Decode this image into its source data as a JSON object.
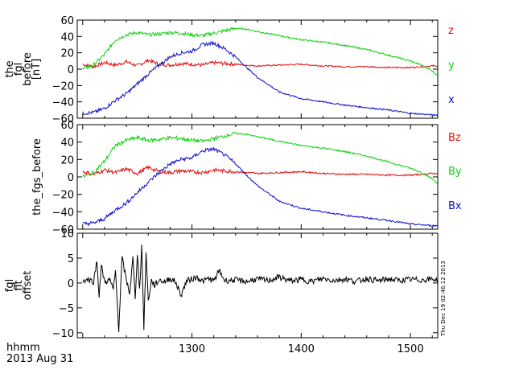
{
  "chart_data": [
    {
      "type": "line",
      "ylabel_lines": [
        "the",
        "fgl",
        "before",
        "[nT]"
      ],
      "ylim": [
        -60,
        60
      ],
      "yticks": [
        -60,
        -40,
        -20,
        0,
        20,
        40,
        60
      ],
      "yticklabels": [
        "−60",
        "−40",
        "−20",
        "0",
        "20",
        "40",
        "60"
      ],
      "xlim": [
        1195,
        1525
      ],
      "series": [
        {
          "name": "z",
          "color": "#e01010",
          "x": [
            1200,
            1210,
            1220,
            1230,
            1240,
            1250,
            1260,
            1270,
            1280,
            1290,
            1300,
            1310,
            1320,
            1330,
            1340,
            1350,
            1360,
            1380,
            1400,
            1420,
            1440,
            1460,
            1480,
            1500,
            1510,
            1520,
            1525
          ],
          "y": [
            6,
            3,
            8,
            5,
            9,
            4,
            11,
            6,
            5,
            7,
            6,
            5,
            8,
            7,
            6,
            5,
            4,
            5,
            6,
            4,
            3,
            3,
            2,
            2,
            3,
            4,
            4
          ]
        },
        {
          "name": "y",
          "color": "#10d010",
          "x": [
            1200,
            1210,
            1220,
            1230,
            1240,
            1250,
            1260,
            1270,
            1280,
            1290,
            1300,
            1310,
            1320,
            1330,
            1340,
            1350,
            1360,
            1380,
            1400,
            1420,
            1440,
            1460,
            1480,
            1500,
            1510,
            1520,
            1525
          ],
          "y": [
            0,
            5,
            18,
            36,
            42,
            45,
            42,
            43,
            45,
            44,
            42,
            41,
            44,
            47,
            50,
            49,
            46,
            41,
            36,
            33,
            29,
            24,
            17,
            10,
            5,
            -2,
            -8
          ]
        },
        {
          "name": "x",
          "color": "#1010d0",
          "x": [
            1200,
            1210,
            1220,
            1230,
            1240,
            1250,
            1260,
            1270,
            1280,
            1290,
            1300,
            1310,
            1320,
            1330,
            1340,
            1350,
            1360,
            1380,
            1400,
            1420,
            1440,
            1460,
            1480,
            1500,
            1510,
            1520,
            1525
          ],
          "y": [
            -54,
            -53,
            -48,
            -38,
            -30,
            -18,
            -6,
            5,
            15,
            20,
            22,
            30,
            32,
            25,
            15,
            2,
            -10,
            -28,
            -36,
            -40,
            -44,
            -47,
            -50,
            -54,
            -55,
            -56,
            -56
          ]
        }
      ]
    },
    {
      "type": "line",
      "ylabel_lines": [
        "the_fgs_before"
      ],
      "ylim": [
        -60,
        60
      ],
      "yticks": [
        -60,
        -40,
        -20,
        0,
        20,
        40,
        60
      ],
      "yticklabels": [
        "−60",
        "−40",
        "−20",
        "0",
        "20",
        "40",
        "60"
      ],
      "xlim": [
        1195,
        1525
      ],
      "series": [
        {
          "name": "Bz",
          "color": "#e01010",
          "x": [
            1200,
            1210,
            1220,
            1230,
            1240,
            1250,
            1260,
            1270,
            1280,
            1290,
            1300,
            1310,
            1320,
            1330,
            1340,
            1350,
            1360,
            1380,
            1400,
            1420,
            1440,
            1460,
            1480,
            1500,
            1510,
            1520,
            1525
          ],
          "y": [
            6,
            3,
            8,
            5,
            9,
            4,
            11,
            6,
            5,
            7,
            6,
            5,
            8,
            7,
            6,
            5,
            4,
            5,
            6,
            4,
            3,
            3,
            2,
            2,
            3,
            4,
            4
          ]
        },
        {
          "name": "By",
          "color": "#10d010",
          "x": [
            1200,
            1210,
            1220,
            1230,
            1240,
            1250,
            1260,
            1270,
            1280,
            1290,
            1300,
            1310,
            1320,
            1330,
            1340,
            1350,
            1360,
            1380,
            1400,
            1420,
            1440,
            1460,
            1480,
            1500,
            1510,
            1520,
            1525
          ],
          "y": [
            0,
            5,
            18,
            36,
            42,
            45,
            42,
            43,
            45,
            44,
            42,
            41,
            44,
            47,
            50,
            49,
            46,
            41,
            36,
            33,
            29,
            24,
            17,
            10,
            5,
            -2,
            -8
          ]
        },
        {
          "name": "Bx",
          "color": "#1010d0",
          "x": [
            1200,
            1210,
            1220,
            1230,
            1240,
            1250,
            1260,
            1270,
            1280,
            1290,
            1300,
            1310,
            1320,
            1330,
            1340,
            1350,
            1360,
            1380,
            1400,
            1420,
            1440,
            1460,
            1480,
            1500,
            1510,
            1520,
            1525
          ],
          "y": [
            -54,
            -53,
            -48,
            -38,
            -30,
            -18,
            -6,
            5,
            15,
            20,
            22,
            30,
            32,
            25,
            15,
            2,
            -10,
            -28,
            -36,
            -40,
            -44,
            -47,
            -50,
            -54,
            -55,
            -56,
            -56
          ]
        }
      ]
    },
    {
      "type": "line",
      "ylabel_lines": [
        "fgl",
        "fit",
        "offset"
      ],
      "ylim": [
        -11,
        10
      ],
      "yticks": [
        -10,
        -5,
        0,
        5,
        10
      ],
      "yticklabels": [
        "−10",
        "−5",
        "0",
        "5",
        "10"
      ],
      "xlim": [
        1195,
        1525
      ],
      "xticks": [
        1300,
        1400,
        1500
      ],
      "xticklabels": [
        "1300",
        "1400",
        "1500"
      ],
      "series": [
        {
          "name": "",
          "color": "#000000",
          "x": [
            1200,
            1205,
            1210,
            1213,
            1215,
            1217,
            1220,
            1225,
            1228,
            1230,
            1233,
            1236,
            1240,
            1243,
            1246,
            1248,
            1250,
            1252,
            1254,
            1256,
            1258,
            1260,
            1263,
            1266,
            1270,
            1275,
            1280,
            1285,
            1290,
            1295,
            1300,
            1305,
            1310,
            1315,
            1320,
            1325,
            1330,
            1340,
            1350,
            1360,
            1370,
            1380,
            1390,
            1400,
            1410,
            1420,
            1430,
            1440,
            1450,
            1460,
            1470,
            1480,
            1490,
            1500,
            1510,
            1520,
            1525
          ],
          "y": [
            0.5,
            0.7,
            0.3,
            4.5,
            -2.5,
            3.5,
            0.2,
            0.6,
            -1.5,
            2.5,
            -9.5,
            5.0,
            0.5,
            -2.0,
            5.0,
            -3.0,
            6.0,
            -1.5,
            7.5,
            -9.0,
            6.0,
            -3.5,
            0.5,
            -0.5,
            0.6,
            0.3,
            0.9,
            0.2,
            -2.5,
            0.4,
            0.8,
            1.2,
            0.3,
            0.9,
            0.4,
            2.5,
            0.5,
            0.6,
            0.3,
            0.8,
            0.5,
            1.2,
            0.4,
            0.7,
            0.3,
            0.9,
            0.5,
            0.8,
            0.3,
            0.9,
            0.4,
            0.8,
            0.5,
            0.7,
            0.6,
            0.8,
            0.7
          ]
        }
      ]
    }
  ],
  "xlabel_lines": [
    "hhmm",
    "2013 Aug 31"
  ],
  "timestamp_stamp": "Thu Dec 19 02:46:12 2013"
}
